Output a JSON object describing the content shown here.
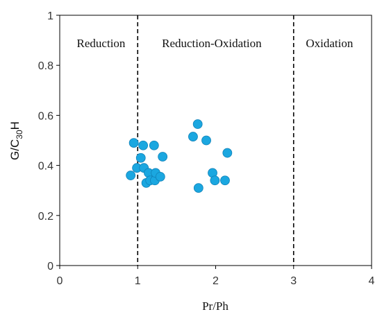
{
  "chart_data": {
    "type": "scatter",
    "xlabel": "Pr/Ph",
    "ylabel": {
      "base": "G/C",
      "sub": "30",
      "tail": "H"
    },
    "xlim": [
      0,
      4
    ],
    "ylim": [
      0,
      1
    ],
    "x_ticks": [
      "0",
      "1",
      "2",
      "3",
      "4"
    ],
    "y_ticks": [
      "0",
      "0.2",
      "0.4",
      "0.6",
      "0.8",
      "1"
    ],
    "grid": false,
    "boundaries": [
      1,
      3
    ],
    "regions": [
      {
        "label": "Reduction",
        "x_center": 0.53
      },
      {
        "label": "Reduction-Oxidation",
        "x_center": 1.95
      },
      {
        "label": "Oxidation",
        "x_center": 3.46
      }
    ],
    "marker_color": "#1BA7E0",
    "marker_stroke": "#1182B8",
    "points": [
      {
        "x": 0.91,
        "y": 0.36
      },
      {
        "x": 0.95,
        "y": 0.49
      },
      {
        "x": 0.99,
        "y": 0.39
      },
      {
        "x": 1.04,
        "y": 0.43
      },
      {
        "x": 1.07,
        "y": 0.48
      },
      {
        "x": 1.08,
        "y": 0.39
      },
      {
        "x": 1.11,
        "y": 0.33
      },
      {
        "x": 1.14,
        "y": 0.37
      },
      {
        "x": 1.16,
        "y": 0.34
      },
      {
        "x": 1.21,
        "y": 0.48
      },
      {
        "x": 1.22,
        "y": 0.34
      },
      {
        "x": 1.23,
        "y": 0.37
      },
      {
        "x": 1.29,
        "y": 0.355
      },
      {
        "x": 1.32,
        "y": 0.435
      },
      {
        "x": 1.71,
        "y": 0.515
      },
      {
        "x": 1.77,
        "y": 0.565
      },
      {
        "x": 1.78,
        "y": 0.31
      },
      {
        "x": 1.88,
        "y": 0.5
      },
      {
        "x": 1.96,
        "y": 0.37
      },
      {
        "x": 1.99,
        "y": 0.34
      },
      {
        "x": 2.12,
        "y": 0.34
      },
      {
        "x": 2.15,
        "y": 0.45
      }
    ]
  }
}
